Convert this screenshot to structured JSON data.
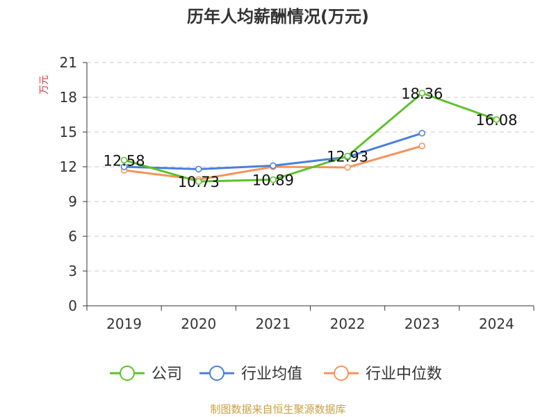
{
  "chart_data": {
    "type": "line",
    "title": "历年人均薪酬情况(万元)",
    "ylabel": "万元",
    "xlabel": "",
    "categories": [
      "2019",
      "2020",
      "2021",
      "2022",
      "2023",
      "2024"
    ],
    "ylim": [
      0,
      21
    ],
    "yticks": [
      0,
      3,
      6,
      9,
      12,
      15,
      18,
      21
    ],
    "grid": true,
    "legend_position": "bottom",
    "series": [
      {
        "name": "公司",
        "color": "#5cc22a",
        "values": [
          12.58,
          10.73,
          10.89,
          12.93,
          18.36,
          16.08
        ],
        "labels": [
          "12.58",
          "10.73",
          "10.89",
          "12.93",
          "18.36",
          "16.08"
        ]
      },
      {
        "name": "行业均值",
        "color": "#4a7fd8",
        "values": [
          12.0,
          11.8,
          12.1,
          12.85,
          14.9,
          null
        ]
      },
      {
        "name": "行业中位数",
        "color": "#f5935a",
        "values": [
          11.7,
          10.9,
          12.0,
          11.95,
          13.8,
          null
        ]
      }
    ]
  },
  "footer": "制图数据来自恒生聚源数据库"
}
